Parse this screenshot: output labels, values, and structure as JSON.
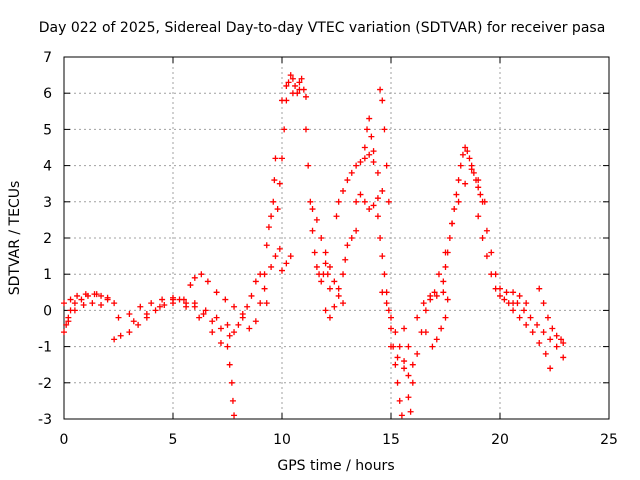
{
  "chart_data": {
    "type": "scatter",
    "title": "Day 022 of 2025, Sidereal Day-to-day VTEC variation (SDTVAR) for receiver pasa",
    "xlabel": "GPS time / hours",
    "ylabel": "SDTVAR / TECUs",
    "xlim": [
      0,
      25
    ],
    "ylim": [
      -3,
      7
    ],
    "xticks": [
      0,
      5,
      10,
      15,
      20,
      25
    ],
    "yticks": [
      -3,
      -2,
      -1,
      0,
      1,
      2,
      3,
      4,
      5,
      6,
      7
    ],
    "grid": true,
    "marker": "+",
    "series_color": "#ff0000",
    "series": [
      {
        "name": "SDTVAR",
        "points": [
          [
            0.0,
            -0.6
          ],
          [
            0.1,
            -0.4
          ],
          [
            0.2,
            -0.2
          ],
          [
            0.3,
            0.0
          ],
          [
            0.5,
            0.2
          ],
          [
            0.8,
            0.3
          ],
          [
            1.1,
            0.4
          ],
          [
            1.4,
            0.45
          ],
          [
            1.7,
            0.4
          ],
          [
            2.0,
            0.3
          ],
          [
            0.0,
            0.2
          ],
          [
            0.3,
            0.3
          ],
          [
            0.6,
            0.4
          ],
          [
            1.0,
            0.45
          ],
          [
            1.5,
            0.45
          ],
          [
            2.0,
            0.35
          ],
          [
            2.3,
            0.2
          ],
          [
            0.2,
            -0.3
          ],
          [
            0.5,
            0.0
          ],
          [
            0.9,
            0.15
          ],
          [
            1.3,
            0.2
          ],
          [
            1.7,
            0.15
          ],
          [
            2.3,
            -0.8
          ],
          [
            2.6,
            -0.7
          ],
          [
            3.0,
            -0.6
          ],
          [
            3.4,
            -0.4
          ],
          [
            3.8,
            -0.2
          ],
          [
            4.2,
            0.0
          ],
          [
            4.6,
            0.15
          ],
          [
            5.0,
            0.3
          ],
          [
            5.3,
            0.3
          ],
          [
            5.6,
            0.2
          ],
          [
            6.0,
            0.1
          ],
          [
            6.4,
            -0.1
          ],
          [
            6.8,
            -0.3
          ],
          [
            7.2,
            -0.5
          ],
          [
            7.6,
            -0.7
          ],
          [
            2.5,
            -0.2
          ],
          [
            3.0,
            -0.1
          ],
          [
            3.5,
            0.1
          ],
          [
            4.0,
            0.2
          ],
          [
            4.5,
            0.3
          ],
          [
            5.0,
            0.35
          ],
          [
            5.5,
            0.3
          ],
          [
            6.0,
            0.2
          ],
          [
            6.5,
            0.0
          ],
          [
            7.0,
            -0.2
          ],
          [
            7.5,
            -0.4
          ],
          [
            3.2,
            -0.3
          ],
          [
            3.8,
            -0.1
          ],
          [
            4.4,
            0.1
          ],
          [
            5.0,
            0.2
          ],
          [
            5.6,
            0.1
          ],
          [
            6.2,
            -0.2
          ],
          [
            6.8,
            -0.6
          ],
          [
            7.2,
            -0.9
          ],
          [
            5.8,
            0.7
          ],
          [
            6.0,
            0.9
          ],
          [
            6.3,
            1.0
          ],
          [
            6.6,
            0.8
          ],
          [
            7.0,
            0.5
          ],
          [
            7.4,
            0.3
          ],
          [
            7.8,
            0.1
          ],
          [
            8.2,
            -0.1
          ],
          [
            7.5,
            -1.0
          ],
          [
            7.6,
            -1.5
          ],
          [
            7.7,
            -2.0
          ],
          [
            7.75,
            -2.5
          ],
          [
            7.8,
            -2.9
          ],
          [
            7.8,
            -0.6
          ],
          [
            8.0,
            -0.4
          ],
          [
            8.2,
            -0.2
          ],
          [
            8.4,
            0.1
          ],
          [
            8.6,
            0.4
          ],
          [
            8.8,
            0.8
          ],
          [
            9.0,
            1.0
          ],
          [
            9.2,
            0.6
          ],
          [
            9.3,
            0.2
          ],
          [
            8.5,
            -0.5
          ],
          [
            8.8,
            -0.3
          ],
          [
            9.0,
            0.2
          ],
          [
            9.2,
            1.0
          ],
          [
            9.3,
            1.8
          ],
          [
            9.4,
            2.3
          ],
          [
            9.5,
            2.6
          ],
          [
            9.6,
            3.0
          ],
          [
            9.65,
            3.6
          ],
          [
            9.7,
            4.2
          ],
          [
            9.5,
            1.2
          ],
          [
            9.7,
            1.5
          ],
          [
            9.9,
            1.7
          ],
          [
            10.0,
            1.1
          ],
          [
            10.2,
            1.3
          ],
          [
            10.4,
            1.5
          ],
          [
            9.8,
            2.8
          ],
          [
            9.9,
            3.5
          ],
          [
            10.0,
            4.2
          ],
          [
            10.1,
            5.0
          ],
          [
            10.2,
            5.8
          ],
          [
            10.3,
            6.3
          ],
          [
            10.4,
            6.5
          ],
          [
            10.5,
            6.4
          ],
          [
            10.6,
            6.2
          ],
          [
            10.7,
            6.0
          ],
          [
            10.8,
            6.3
          ],
          [
            10.9,
            6.4
          ],
          [
            11.0,
            6.1
          ],
          [
            10.0,
            5.8
          ],
          [
            10.2,
            6.2
          ],
          [
            10.5,
            6.0
          ],
          [
            10.8,
            6.1
          ],
          [
            11.1,
            5.9
          ],
          [
            11.1,
            5.0
          ],
          [
            11.2,
            4.0
          ],
          [
            11.3,
            3.0
          ],
          [
            11.4,
            2.2
          ],
          [
            11.5,
            1.6
          ],
          [
            11.6,
            1.2
          ],
          [
            11.7,
            1.0
          ],
          [
            11.8,
            0.8
          ],
          [
            11.9,
            1.0
          ],
          [
            12.0,
            1.3
          ],
          [
            12.1,
            1.0
          ],
          [
            12.2,
            0.6
          ],
          [
            11.4,
            2.8
          ],
          [
            11.6,
            2.5
          ],
          [
            11.8,
            2.0
          ],
          [
            12.0,
            1.6
          ],
          [
            12.2,
            1.2
          ],
          [
            12.4,
            0.8
          ],
          [
            12.6,
            0.4
          ],
          [
            12.8,
            0.2
          ],
          [
            12.0,
            0.0
          ],
          [
            12.2,
            -0.2
          ],
          [
            12.4,
            0.1
          ],
          [
            12.6,
            0.6
          ],
          [
            12.8,
            1.0
          ],
          [
            12.9,
            1.4
          ],
          [
            13.0,
            1.8
          ],
          [
            13.2,
            2.0
          ],
          [
            13.4,
            2.2
          ],
          [
            12.5,
            2.6
          ],
          [
            12.6,
            3.0
          ],
          [
            12.8,
            3.3
          ],
          [
            13.0,
            3.6
          ],
          [
            13.2,
            3.8
          ],
          [
            13.4,
            4.0
          ],
          [
            13.6,
            4.1
          ],
          [
            13.8,
            4.2
          ],
          [
            14.0,
            4.3
          ],
          [
            14.2,
            4.1
          ],
          [
            14.4,
            3.8
          ],
          [
            13.4,
            3.0
          ],
          [
            13.6,
            3.2
          ],
          [
            13.8,
            3.0
          ],
          [
            14.0,
            2.8
          ],
          [
            14.2,
            2.9
          ],
          [
            14.4,
            3.1
          ],
          [
            14.6,
            3.3
          ],
          [
            13.8,
            4.5
          ],
          [
            13.9,
            5.0
          ],
          [
            14.0,
            5.3
          ],
          [
            14.1,
            4.8
          ],
          [
            14.2,
            4.4
          ],
          [
            14.5,
            6.1
          ],
          [
            14.6,
            5.8
          ],
          [
            14.7,
            5.0
          ],
          [
            14.8,
            4.0
          ],
          [
            14.9,
            3.0
          ],
          [
            14.4,
            2.6
          ],
          [
            14.5,
            2.0
          ],
          [
            14.6,
            1.5
          ],
          [
            14.7,
            1.0
          ],
          [
            14.8,
            0.5
          ],
          [
            14.9,
            0.0
          ],
          [
            15.0,
            -0.5
          ],
          [
            15.1,
            -1.0
          ],
          [
            15.2,
            -1.5
          ],
          [
            15.3,
            -2.0
          ],
          [
            15.4,
            -2.5
          ],
          [
            15.5,
            -2.9
          ],
          [
            14.6,
            0.5
          ],
          [
            14.8,
            0.2
          ],
          [
            15.0,
            -0.2
          ],
          [
            15.2,
            -0.6
          ],
          [
            15.4,
            -1.0
          ],
          [
            15.6,
            -1.4
          ],
          [
            15.8,
            -1.8
          ],
          [
            16.0,
            -2.0
          ],
          [
            15.0,
            -1.0
          ],
          [
            15.3,
            -1.3
          ],
          [
            15.6,
            -1.6
          ],
          [
            15.8,
            -2.4
          ],
          [
            15.9,
            -2.8
          ],
          [
            15.6,
            -0.5
          ],
          [
            15.8,
            -1.0
          ],
          [
            16.0,
            -1.5
          ],
          [
            16.2,
            -1.2
          ],
          [
            16.4,
            -0.6
          ],
          [
            16.6,
            0.0
          ],
          [
            16.8,
            0.4
          ],
          [
            17.0,
            0.5
          ],
          [
            16.2,
            -0.2
          ],
          [
            16.5,
            0.2
          ],
          [
            16.8,
            0.3
          ],
          [
            17.1,
            0.4
          ],
          [
            17.4,
            0.5
          ],
          [
            17.6,
            0.3
          ],
          [
            16.6,
            -0.6
          ],
          [
            16.9,
            -1.0
          ],
          [
            17.1,
            -0.8
          ],
          [
            17.3,
            -0.5
          ],
          [
            17.5,
            -0.2
          ],
          [
            17.4,
            0.8
          ],
          [
            17.5,
            1.2
          ],
          [
            17.6,
            1.6
          ],
          [
            17.7,
            2.0
          ],
          [
            17.8,
            2.4
          ],
          [
            17.9,
            2.8
          ],
          [
            18.0,
            3.2
          ],
          [
            18.1,
            3.6
          ],
          [
            18.2,
            4.0
          ],
          [
            18.3,
            4.3
          ],
          [
            18.4,
            4.5
          ],
          [
            18.5,
            4.4
          ],
          [
            18.6,
            4.2
          ],
          [
            18.7,
            4.0
          ],
          [
            18.8,
            3.8
          ],
          [
            18.9,
            3.6
          ],
          [
            19.0,
            3.4
          ],
          [
            19.1,
            3.2
          ],
          [
            19.2,
            3.0
          ],
          [
            17.2,
            1.0
          ],
          [
            17.5,
            1.6
          ],
          [
            17.8,
            2.4
          ],
          [
            18.1,
            3.0
          ],
          [
            18.4,
            3.5
          ],
          [
            18.7,
            3.9
          ],
          [
            19.0,
            3.6
          ],
          [
            19.3,
            3.0
          ],
          [
            19.0,
            2.6
          ],
          [
            19.2,
            2.0
          ],
          [
            19.4,
            1.5
          ],
          [
            19.6,
            1.0
          ],
          [
            19.8,
            0.6
          ],
          [
            20.0,
            0.4
          ],
          [
            20.2,
            0.3
          ],
          [
            20.4,
            0.2
          ],
          [
            20.6,
            0.2
          ],
          [
            19.4,
            2.2
          ],
          [
            19.6,
            1.6
          ],
          [
            19.8,
            1.0
          ],
          [
            20.0,
            0.6
          ],
          [
            20.3,
            0.5
          ],
          [
            20.6,
            0.5
          ],
          [
            20.9,
            0.4
          ],
          [
            21.2,
            0.2
          ],
          [
            20.6,
            0.0
          ],
          [
            20.9,
            -0.2
          ],
          [
            21.2,
            -0.4
          ],
          [
            21.5,
            -0.6
          ],
          [
            21.8,
            -0.9
          ],
          [
            22.1,
            -1.2
          ],
          [
            22.3,
            -1.6
          ],
          [
            20.8,
            0.2
          ],
          [
            21.1,
            0.0
          ],
          [
            21.4,
            -0.2
          ],
          [
            21.7,
            -0.4
          ],
          [
            22.0,
            -0.6
          ],
          [
            22.3,
            -0.8
          ],
          [
            22.6,
            -1.0
          ],
          [
            22.9,
            -1.3
          ],
          [
            21.8,
            0.6
          ],
          [
            22.0,
            0.2
          ],
          [
            22.2,
            -0.2
          ],
          [
            22.4,
            -0.5
          ],
          [
            22.6,
            -0.7
          ],
          [
            22.8,
            -0.8
          ],
          [
            22.9,
            -0.9
          ]
        ]
      }
    ]
  }
}
